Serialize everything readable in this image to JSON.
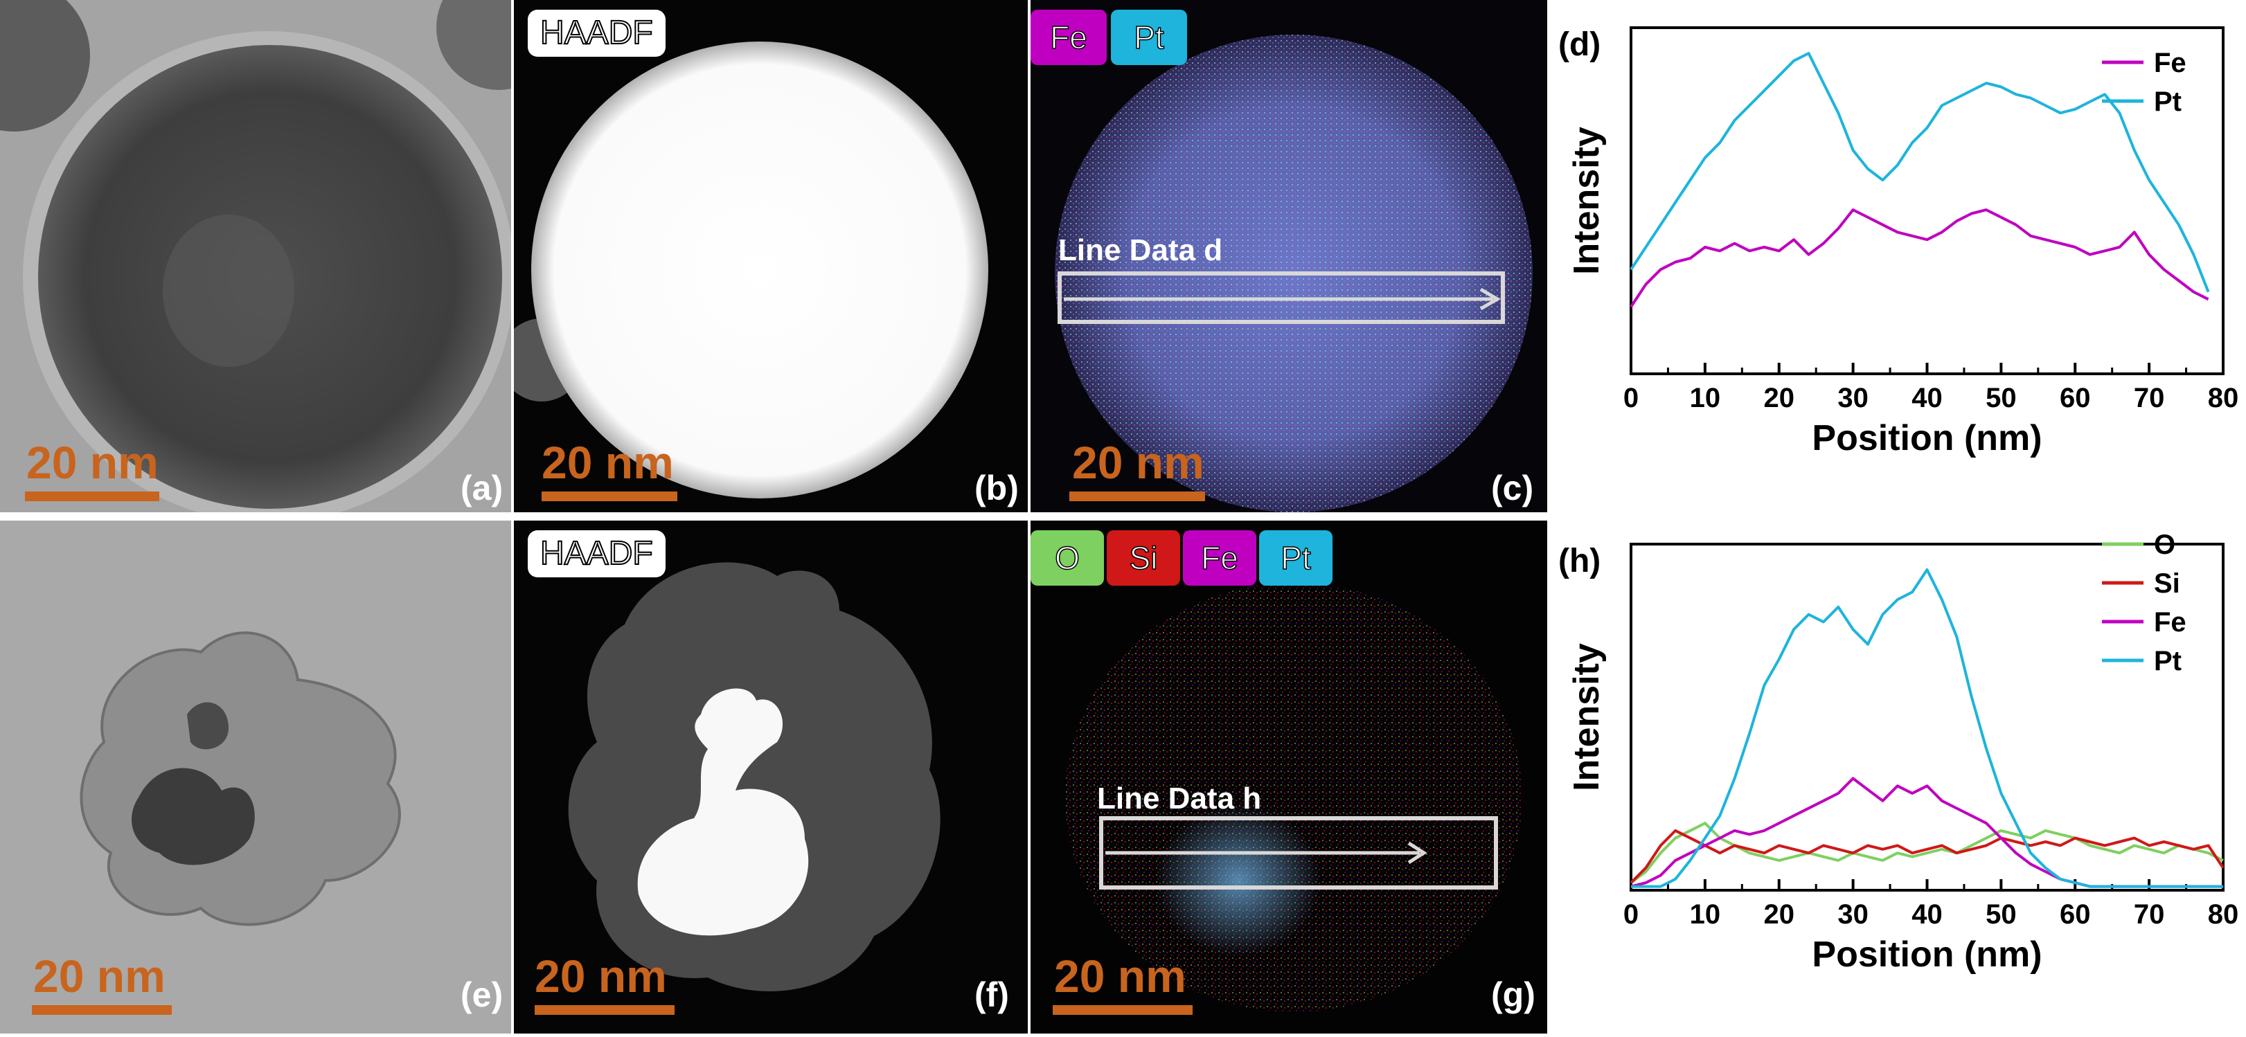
{
  "figure": {
    "panels": {
      "a": {
        "label": "(a)",
        "scalebar": "20 nm"
      },
      "b": {
        "label": "(b)",
        "scalebar": "20 nm",
        "badge": "HAADF"
      },
      "c": {
        "label": "(c)",
        "scalebar": "20 nm",
        "elements": [
          "Fe",
          "Pt"
        ],
        "line_label": "Line Data d"
      },
      "e": {
        "label": "(e)",
        "scalebar": "20 nm"
      },
      "f": {
        "label": "(f)",
        "scalebar": "20 nm",
        "badge": "HAADF"
      },
      "g": {
        "label": "(g)",
        "scalebar": "20 nm",
        "elements": [
          "O",
          "Si",
          "Fe",
          "Pt"
        ],
        "line_label": "Line Data h"
      }
    },
    "colors": {
      "O": "#7ed060",
      "Si": "#d01818",
      "Fe": "#c000c0",
      "Pt": "#1eb4dc",
      "scalebar": "#c8641e"
    }
  },
  "chart_data": [
    {
      "type": "line",
      "panel_label": "(d)",
      "xlabel": "Position (nm)",
      "ylabel": "Intensity",
      "xlim": [
        0,
        80
      ],
      "xticks": [
        0,
        10,
        20,
        30,
        40,
        50,
        60,
        70,
        80
      ],
      "legend_position": "top-right",
      "x": [
        0,
        2,
        4,
        6,
        8,
        10,
        12,
        14,
        16,
        18,
        20,
        22,
        24,
        26,
        28,
        30,
        32,
        34,
        36,
        38,
        40,
        42,
        44,
        46,
        48,
        50,
        52,
        54,
        56,
        58,
        60,
        62,
        64,
        66,
        68,
        70,
        72,
        74,
        76,
        78
      ],
      "series": [
        {
          "name": "Fe",
          "color": "#c000c0",
          "values": [
            18,
            24,
            28,
            30,
            31,
            34,
            33,
            35,
            33,
            34,
            33,
            36,
            32,
            35,
            39,
            44,
            42,
            40,
            38,
            37,
            36,
            38,
            41,
            43,
            44,
            42,
            40,
            37,
            36,
            35,
            34,
            32,
            33,
            34,
            38,
            32,
            28,
            25,
            22,
            20
          ]
        },
        {
          "name": "Pt",
          "color": "#1eb4dc",
          "values": [
            28,
            34,
            40,
            46,
            52,
            58,
            62,
            68,
            72,
            76,
            80,
            84,
            86,
            78,
            70,
            60,
            55,
            52,
            56,
            62,
            66,
            72,
            74,
            76,
            78,
            77,
            75,
            74,
            72,
            70,
            71,
            73,
            75,
            70,
            60,
            52,
            46,
            40,
            32,
            22
          ]
        }
      ]
    },
    {
      "type": "line",
      "panel_label": "(h)",
      "xlabel": "Position (nm)",
      "ylabel": "Intensity",
      "xlim": [
        0,
        80
      ],
      "xticks": [
        0,
        10,
        20,
        30,
        40,
        50,
        60,
        70,
        80
      ],
      "legend_position": "top-right",
      "x": [
        0,
        2,
        4,
        6,
        8,
        10,
        12,
        14,
        16,
        18,
        20,
        22,
        24,
        26,
        28,
        30,
        32,
        34,
        36,
        38,
        40,
        42,
        44,
        46,
        48,
        50,
        52,
        54,
        56,
        58,
        60,
        62,
        64,
        66,
        68,
        70,
        72,
        74,
        76,
        78,
        80
      ],
      "series": [
        {
          "name": "O",
          "color": "#7ed060",
          "values": [
            2,
            5,
            10,
            14,
            16,
            18,
            14,
            12,
            10,
            9,
            8,
            9,
            10,
            9,
            8,
            10,
            9,
            8,
            10,
            9,
            10,
            11,
            10,
            12,
            14,
            16,
            15,
            14,
            16,
            15,
            14,
            12,
            11,
            10,
            12,
            11,
            10,
            12,
            11,
            10,
            8
          ]
        },
        {
          "name": "Si",
          "color": "#d01818",
          "values": [
            2,
            6,
            12,
            16,
            14,
            12,
            10,
            12,
            11,
            10,
            12,
            11,
            10,
            12,
            11,
            10,
            12,
            11,
            12,
            10,
            11,
            12,
            10,
            11,
            12,
            14,
            13,
            12,
            13,
            12,
            14,
            13,
            12,
            13,
            14,
            12,
            13,
            12,
            11,
            12,
            6
          ]
        },
        {
          "name": "Fe",
          "color": "#c000c0",
          "values": [
            1,
            2,
            4,
            8,
            10,
            12,
            14,
            16,
            15,
            16,
            18,
            20,
            22,
            24,
            26,
            30,
            27,
            24,
            28,
            26,
            28,
            24,
            22,
            20,
            18,
            14,
            10,
            7,
            5,
            3,
            2,
            1,
            1,
            1,
            1,
            1,
            1,
            1,
            1,
            1,
            1
          ]
        },
        {
          "name": "Pt",
          "color": "#1eb4dc",
          "values": [
            1,
            1,
            1,
            3,
            8,
            14,
            20,
            30,
            42,
            55,
            62,
            70,
            74,
            72,
            76,
            70,
            66,
            74,
            78,
            80,
            86,
            78,
            68,
            52,
            38,
            26,
            18,
            10,
            6,
            3,
            2,
            1,
            1,
            1,
            1,
            1,
            1,
            1,
            1,
            1,
            1
          ]
        }
      ]
    }
  ]
}
